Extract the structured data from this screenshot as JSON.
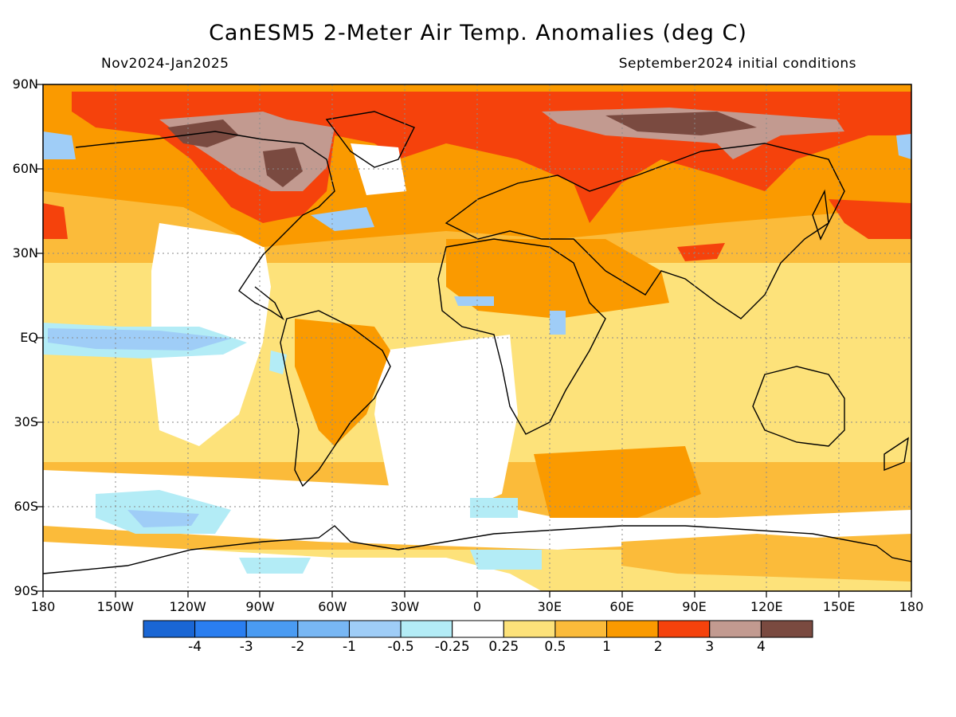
{
  "chart": {
    "title": "CanESM5 2-Meter Air Temp. Anomalies (deg C)",
    "period": "Nov2024-Jan2025",
    "initial_conditions": "September2024 initial conditions"
  },
  "chart_data": {
    "type": "heatmap",
    "projection": "equirectangular",
    "lon_range": [
      -180,
      180
    ],
    "lat_range": [
      -90,
      90
    ],
    "lat_ticks": [
      "90N",
      "60N",
      "30N",
      "EQ",
      "30S",
      "60S",
      "90S"
    ],
    "lon_ticks": [
      "180",
      "150W",
      "120W",
      "90W",
      "60W",
      "30W",
      "0",
      "30E",
      "60E",
      "90E",
      "120E",
      "150E",
      "180"
    ],
    "colorbar": {
      "levels": [
        "-4",
        "-3",
        "-2",
        "-1",
        "-0.5",
        "-0.25",
        "0.25",
        "0.5",
        "1",
        "2",
        "3",
        "4"
      ],
      "colors": [
        "#1a66d4",
        "#2a7ef0",
        "#4a9bf2",
        "#78b7f4",
        "#9fcdf7",
        "#b3ecf6",
        "#ffffff",
        "#fde27a",
        "#fbbb3a",
        "#fa9a00",
        "#f5420c",
        "#c29a90",
        "#7a4a40"
      ]
    },
    "regions": [
      {
        "name": "arctic-warm",
        "lon": [
          -180,
          180
        ],
        "lat": [
          75,
          90
        ],
        "anomaly": "1 to 3"
      },
      {
        "name": "northern-canada-strong-warm",
        "lon": [
          -125,
          -70
        ],
        "lat": [
          50,
          80
        ],
        "anomaly": "3 to >4"
      },
      {
        "name": "siberia-strong-warm",
        "lon": [
          60,
          150
        ],
        "lat": [
          60,
          78
        ],
        "anomaly": "2 to >4"
      },
      {
        "name": "north-atlantic-cool",
        "lon": [
          -75,
          -40
        ],
        "lat": [
          35,
          48
        ],
        "anomaly": "-1 to -0.25"
      },
      {
        "name": "equatorial-pacific-cool",
        "lon": [
          -180,
          -95
        ],
        "lat": [
          -8,
          6
        ],
        "anomaly": "-1 to -0.25"
      },
      {
        "name": "southern-ocean-cool",
        "lon": [
          -150,
          -90
        ],
        "lat": [
          -65,
          -52
        ],
        "anomaly": "-1 to -0.25"
      },
      {
        "name": "tropics-warm",
        "lon": [
          -180,
          180
        ],
        "lat": [
          -40,
          30
        ],
        "anomaly": "0.25 to 2"
      },
      {
        "name": "east-asia-warm",
        "lon": [
          100,
          180
        ],
        "lat": [
          30,
          50
        ],
        "anomaly": "2 to 3"
      }
    ]
  }
}
